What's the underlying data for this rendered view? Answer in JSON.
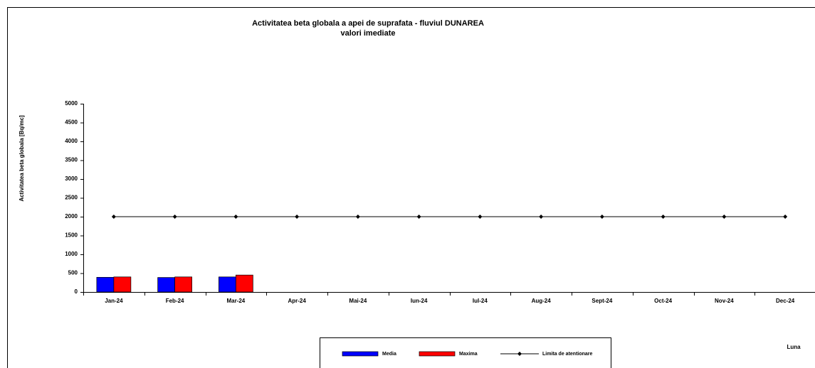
{
  "chart_data": {
    "type": "bar",
    "title": "Activitatea beta globala a apei de suprafata - fluviul DUNAREA",
    "subtitle": "valori imediate",
    "y_label": "Activitatea beta globala [Bq/mc]",
    "x_label": "Luna",
    "categories": [
      "Jan-24",
      "Feb-24",
      "Mar-24",
      "Apr-24",
      "Mai-24",
      "Iun-24",
      "Iul-24",
      "Aug-24",
      "Sept-24",
      "Oct-24",
      "Nov-24",
      "Dec-24"
    ],
    "series": [
      {
        "name": "Media",
        "color": "#0000ff",
        "type": "bar",
        "values": [
          390,
          385,
          400,
          null,
          null,
          null,
          null,
          null,
          null,
          null,
          null,
          null
        ]
      },
      {
        "name": "Maxima",
        "color": "#ff0000",
        "type": "bar",
        "values": [
          400,
          400,
          450,
          null,
          null,
          null,
          null,
          null,
          null,
          null,
          null,
          null
        ]
      },
      {
        "name": "Limita de atentionare",
        "color": "#000000",
        "type": "line",
        "values": [
          2000,
          2000,
          2000,
          2000,
          2000,
          2000,
          2000,
          2000,
          2000,
          2000,
          2000,
          2000
        ]
      }
    ],
    "ylim": [
      0,
      5000
    ],
    "yticks": [
      0,
      500,
      1000,
      1500,
      2000,
      2500,
      3000,
      3500,
      4000,
      4500,
      5000
    ],
    "grid": false
  }
}
